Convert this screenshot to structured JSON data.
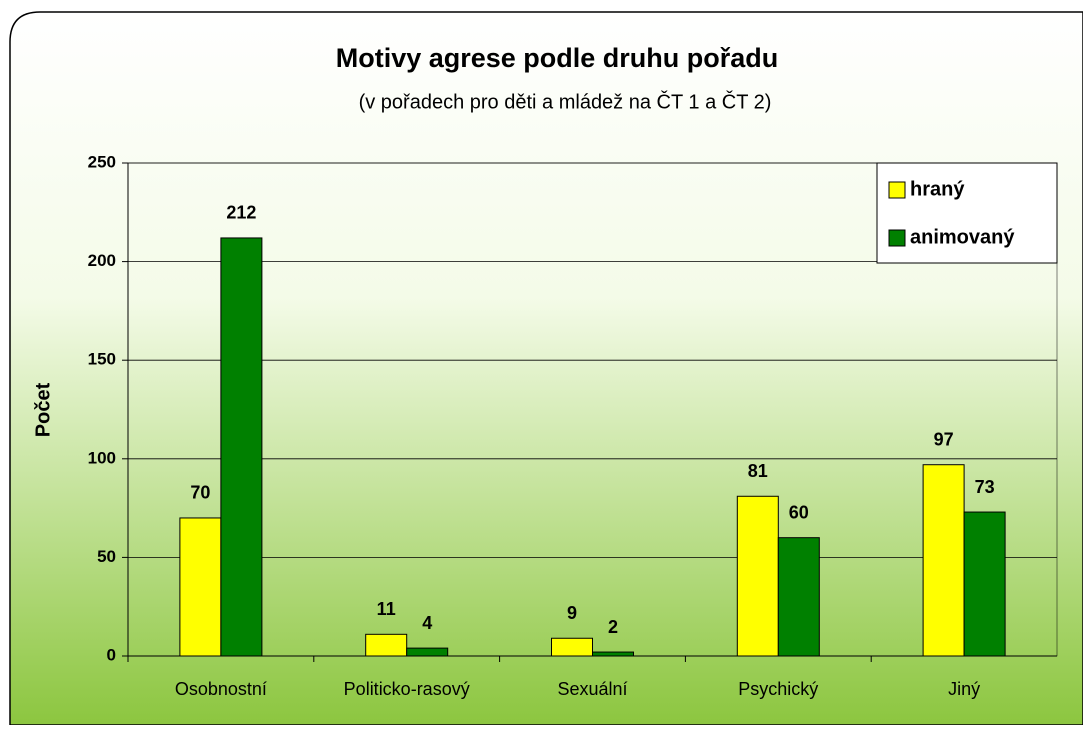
{
  "chart_data": {
    "type": "bar",
    "title": "Motivy agrese podle druhu pořadu",
    "subtitle": "(v pořadech pro děti a mládež na ČT 1 a ČT 2)",
    "y_label": "Počet",
    "categories": [
      "Osobnostní",
      "Politicko-rasový",
      "Sexuální",
      "Psychický",
      "Jiný"
    ],
    "series": [
      {
        "name": "hraný",
        "color": "#ffff00",
        "values": [
          70,
          11,
          9,
          81,
          97
        ]
      },
      {
        "name": "animovaný",
        "color": "#008000",
        "values": [
          212,
          4,
          2,
          60,
          73
        ]
      }
    ],
    "ylim": [
      0,
      250
    ],
    "yticks": [
      0,
      50,
      100,
      150,
      200,
      250
    ],
    "grid": true,
    "legend": "top-right"
  }
}
